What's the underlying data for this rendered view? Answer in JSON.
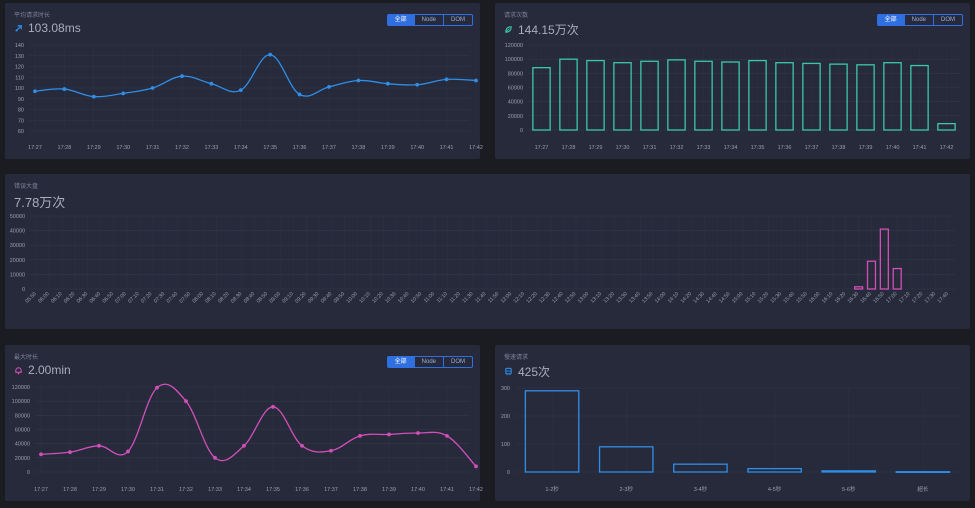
{
  "panels": {
    "avg_time": {
      "title": "平均请求时长",
      "value": "103.08ms",
      "icon": "rocket-icon",
      "tabs": [
        "全部",
        "Node",
        "DOM"
      ],
      "active_tab": 0
    },
    "req_count": {
      "title": "请求次数",
      "value": "144.15万次",
      "icon": "leaf-icon",
      "tabs": [
        "全部",
        "Node",
        "DOM"
      ],
      "active_tab": 0
    },
    "error_trend": {
      "title": "错误大盘",
      "value": "7.78万次"
    },
    "max_time": {
      "title": "最大时长",
      "value": "2.00min",
      "icon": "bell-icon",
      "tabs": [
        "全部",
        "Node",
        "DOM"
      ],
      "active_tab": 0
    },
    "slow_req": {
      "title": "慢速请求",
      "value": "425次",
      "icon": "train-icon"
    }
  },
  "colors": {
    "blue": "#2f8ee8",
    "teal": "#3cc8a8",
    "magenta": "#d24fb8",
    "axis_text": "#9aa0b0",
    "grid": "#33384a"
  },
  "chart_data": [
    {
      "id": "avg_time",
      "type": "line",
      "smooth": true,
      "categories": [
        "17:27",
        "17:28",
        "17:29",
        "17:30",
        "17:31",
        "17:32",
        "17:33",
        "17:34",
        "17:35",
        "17:36",
        "17:37",
        "17:38",
        "17:39",
        "17:40",
        "17:41",
        "17:42"
      ],
      "values": [
        97,
        99,
        92,
        95,
        100,
        111,
        104,
        98,
        131,
        94,
        101,
        107,
        104,
        103,
        108,
        107
      ],
      "yticks": [
        60,
        70,
        80,
        90,
        100,
        110,
        120,
        130,
        140
      ],
      "ylim": [
        60,
        140
      ],
      "color": "#2f8ee8"
    },
    {
      "id": "req_count",
      "type": "bar",
      "categories": [
        "17:27",
        "17:28",
        "17:29",
        "17:30",
        "17:31",
        "17:32",
        "17:33",
        "17:34",
        "17:35",
        "17:36",
        "17:37",
        "17:38",
        "17:39",
        "17:40",
        "17:41",
        "17:42"
      ],
      "values": [
        88000,
        100000,
        98000,
        95000,
        97000,
        99000,
        97000,
        96000,
        98000,
        95000,
        94000,
        93000,
        92000,
        95000,
        91000,
        9000
      ],
      "yticks": [
        0,
        20000,
        40000,
        60000,
        80000,
        100000,
        120000
      ],
      "ylim": [
        0,
        120000
      ],
      "color": "#3cc8a8"
    },
    {
      "id": "error_trend",
      "type": "bar",
      "categories": [
        "05:50",
        "06:00",
        "06:10",
        "06:20",
        "06:30",
        "06:40",
        "06:50",
        "07:00",
        "07:10",
        "07:20",
        "07:30",
        "07:40",
        "07:50",
        "08:00",
        "08:10",
        "08:20",
        "08:30",
        "08:40",
        "08:50",
        "09:00",
        "09:10",
        "09:20",
        "09:30",
        "09:40",
        "09:50",
        "10:00",
        "10:10",
        "10:20",
        "10:30",
        "10:40",
        "10:50",
        "11:00",
        "11:10",
        "11:20",
        "11:30",
        "11:40",
        "11:50",
        "12:00",
        "12:10",
        "12:20",
        "12:30",
        "12:40",
        "12:50",
        "13:00",
        "13:10",
        "13:20",
        "13:30",
        "13:40",
        "13:50",
        "14:00",
        "14:10",
        "14:20",
        "14:30",
        "14:40",
        "14:50",
        "15:00",
        "15:10",
        "15:20",
        "15:30",
        "15:40",
        "15:50",
        "16:00",
        "16:10",
        "16:20",
        "16:30",
        "16:40",
        "16:50",
        "17:00",
        "17:10",
        "17:20",
        "17:30",
        "17:40"
      ],
      "values": [
        0,
        0,
        0,
        0,
        0,
        0,
        0,
        0,
        0,
        0,
        0,
        0,
        0,
        0,
        0,
        0,
        0,
        0,
        0,
        0,
        0,
        0,
        0,
        0,
        0,
        0,
        0,
        0,
        0,
        0,
        0,
        0,
        0,
        0,
        0,
        0,
        0,
        0,
        0,
        0,
        0,
        0,
        0,
        0,
        0,
        0,
        0,
        0,
        0,
        0,
        0,
        0,
        0,
        0,
        0,
        0,
        0,
        0,
        0,
        0,
        0,
        0,
        0,
        0,
        1500,
        19000,
        41000,
        14000,
        0,
        0,
        0,
        0
      ],
      "yticks": [
        0,
        10000,
        20000,
        30000,
        40000,
        50000
      ],
      "ylim": [
        0,
        50000
      ],
      "color": "#d24fb8"
    },
    {
      "id": "max_time",
      "type": "line",
      "smooth": true,
      "categories": [
        "17:27",
        "17:28",
        "17:29",
        "17:30",
        "17:31",
        "17:32",
        "17:33",
        "17:34",
        "17:35",
        "17:36",
        "17:37",
        "17:38",
        "17:39",
        "17:40",
        "17:41",
        "17:42"
      ],
      "values": [
        25000,
        28000,
        37000,
        29000,
        119000,
        100000,
        20000,
        37000,
        92000,
        37000,
        30000,
        51000,
        53000,
        55000,
        51000,
        8000
      ],
      "yticks": [
        0,
        20000,
        40000,
        60000,
        80000,
        100000,
        120000
      ],
      "ylim": [
        0,
        120000
      ],
      "color": "#d24fb8"
    },
    {
      "id": "slow_req",
      "type": "bar",
      "categories": [
        "1-2秒",
        "2-3秒",
        "3-4秒",
        "4-5秒",
        "5-6秒",
        "超长"
      ],
      "values": [
        290,
        90,
        28,
        12,
        4,
        1
      ],
      "yticks": [
        0,
        100,
        200,
        300
      ],
      "ylim": [
        0,
        300
      ],
      "color": "#2f8ee8"
    }
  ]
}
